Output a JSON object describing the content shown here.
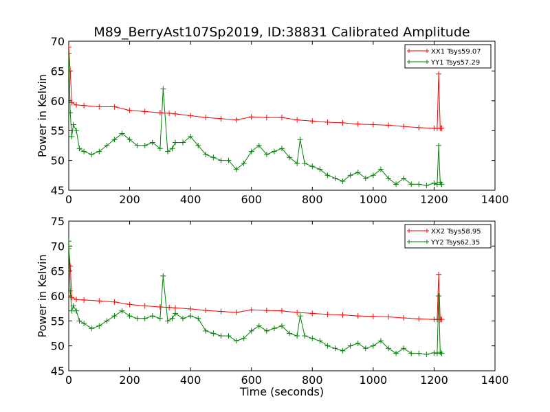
{
  "figure_title": "M89_BerryAst107Sp2019, ID:38831 Calibrated Amplitude",
  "xlabel": "Time (seconds)",
  "colors": {
    "xx": "#ff0000",
    "yy": "#008000"
  },
  "chart_data": [
    {
      "type": "line",
      "title": "M89_BerryAst107Sp2019, ID:38831 Calibrated Amplitude",
      "xlabel": "",
      "ylabel": "Power in Kelvin",
      "xlim": [
        0,
        1400
      ],
      "ylim": [
        45,
        70
      ],
      "xticks": [
        0,
        200,
        400,
        600,
        800,
        1000,
        1200,
        1400
      ],
      "yticks": [
        45,
        50,
        55,
        60,
        65,
        70
      ],
      "legend_position": "top-right",
      "grid": false,
      "series": [
        {
          "name": "XX1 Tsys59.07",
          "color": "#ff0000",
          "x": [
            0,
            5,
            10,
            25,
            50,
            100,
            150,
            200,
            250,
            300,
            330,
            350,
            400,
            450,
            500,
            550,
            600,
            650,
            700,
            750,
            800,
            850,
            900,
            950,
            1000,
            1050,
            1100,
            1150,
            1200,
            1210,
            1215,
            1220,
            1225
          ],
          "y": [
            69,
            65,
            59.7,
            59.3,
            59.2,
            59.0,
            59.0,
            58.4,
            58.2,
            58.0,
            57.9,
            57.8,
            57.5,
            57.2,
            57.0,
            56.8,
            57.3,
            57.2,
            57.2,
            56.8,
            56.6,
            56.4,
            56.3,
            56.1,
            56.0,
            55.9,
            55.7,
            55.5,
            55.4,
            55.4,
            64.5,
            55.4,
            55.4
          ]
        },
        {
          "name": "YY1 Tsys57.29",
          "color": "#008000",
          "x": [
            0,
            5,
            10,
            15,
            25,
            35,
            50,
            75,
            100,
            125,
            150,
            175,
            200,
            225,
            250,
            275,
            300,
            310,
            325,
            340,
            350,
            375,
            400,
            425,
            450,
            475,
            500,
            525,
            550,
            575,
            600,
            625,
            650,
            675,
            700,
            725,
            750,
            760,
            775,
            800,
            825,
            850,
            875,
            900,
            925,
            950,
            975,
            1000,
            1025,
            1050,
            1075,
            1100,
            1125,
            1150,
            1175,
            1200,
            1210,
            1215,
            1220,
            1225
          ],
          "y": [
            68,
            58,
            54,
            56,
            55,
            52,
            51.5,
            51,
            51.5,
            52.5,
            53.5,
            54.5,
            53.5,
            52.5,
            52.5,
            53,
            52,
            62,
            51.5,
            52,
            53,
            53,
            54,
            52.5,
            51,
            50.5,
            50,
            50,
            48.5,
            49.5,
            51.5,
            52.5,
            51,
            51.5,
            52,
            50.5,
            49.5,
            53.5,
            49.5,
            49,
            48.5,
            47.5,
            47,
            46.5,
            47.5,
            48,
            47,
            47.5,
            48.5,
            47,
            46,
            47,
            46,
            46,
            45.8,
            46.2,
            46,
            52.5,
            46.3,
            46
          ]
        }
      ]
    },
    {
      "type": "line",
      "title": "",
      "xlabel": "Time (seconds)",
      "ylabel": "Power in Kelvin",
      "xlim": [
        0,
        1400
      ],
      "ylim": [
        45,
        75
      ],
      "xticks": [
        0,
        200,
        400,
        600,
        800,
        1000,
        1200,
        1400
      ],
      "yticks": [
        45,
        50,
        55,
        60,
        65,
        70,
        75
      ],
      "legend_position": "top-right",
      "grid": false,
      "series": [
        {
          "name": "XX2 Tsys58.95",
          "color": "#ff0000",
          "x": [
            0,
            5,
            10,
            25,
            50,
            100,
            150,
            200,
            250,
            300,
            330,
            350,
            400,
            450,
            500,
            550,
            600,
            650,
            700,
            750,
            800,
            850,
            900,
            950,
            1000,
            1050,
            1100,
            1150,
            1200,
            1210,
            1215,
            1220,
            1225
          ],
          "y": [
            69.5,
            66,
            59.7,
            59.3,
            59.2,
            59.0,
            58.8,
            58.3,
            58.0,
            57.8,
            57.7,
            57.6,
            57.4,
            57.1,
            56.9,
            56.7,
            57.2,
            57.1,
            57.0,
            56.7,
            56.5,
            56.3,
            56.2,
            56.0,
            55.9,
            55.8,
            55.6,
            55.4,
            55.3,
            55.3,
            64.3,
            55.3,
            55.3
          ]
        },
        {
          "name": "YY2 Tsys62.35",
          "color": "#008000",
          "x": [
            0,
            5,
            10,
            15,
            25,
            35,
            50,
            75,
            100,
            125,
            150,
            175,
            200,
            225,
            250,
            275,
            300,
            310,
            325,
            340,
            350,
            375,
            400,
            425,
            450,
            475,
            500,
            525,
            550,
            575,
            600,
            625,
            650,
            675,
            700,
            725,
            750,
            760,
            775,
            800,
            825,
            850,
            875,
            900,
            925,
            950,
            975,
            1000,
            1025,
            1050,
            1075,
            1100,
            1125,
            1150,
            1175,
            1200,
            1210,
            1215,
            1220,
            1225
          ],
          "y": [
            71,
            61,
            57,
            58,
            57,
            55,
            54.5,
            53.5,
            54,
            55,
            56,
            57,
            56,
            55.5,
            55.5,
            56,
            55.5,
            64,
            55,
            55.5,
            56.5,
            55.5,
            56,
            55.5,
            53,
            52.5,
            52,
            52,
            51,
            51.5,
            53,
            54,
            53,
            53.5,
            54,
            52.5,
            52,
            56,
            52,
            51.5,
            51,
            50,
            49.5,
            49,
            50,
            50.5,
            49.5,
            50,
            51,
            49.5,
            48.5,
            49.5,
            48.5,
            48.5,
            48.3,
            48.6,
            48.5,
            60,
            48.7,
            48.5
          ]
        }
      ]
    }
  ]
}
